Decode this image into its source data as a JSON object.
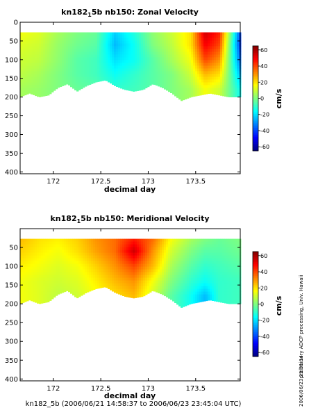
{
  "footer": {
    "caption": "kn182_5b (2006/06/21 14:58:37 to 2006/06/23 23:45:04 UTC)",
    "side_note_1": "preliminary ADCP processing,  Univ. Hawaii",
    "side_note_2": "2006/06/23 23:51:14"
  },
  "colors": {
    "colormap": [
      "#00007f",
      "#0000ff",
      "#007fff",
      "#00ffff",
      "#7fff7f",
      "#ffff00",
      "#ff7f00",
      "#ff0000",
      "#7f0000"
    ],
    "contour": "#000000",
    "no_data": "#ffffff"
  },
  "chart_data": [
    {
      "type": "heatmap",
      "title_main": "kn182",
      "title_sub": "1",
      "title_rest": "5b nb150: Zonal Velocity",
      "xlabel": "decimal day",
      "ylabel": "",
      "xlim": [
        171.65,
        173.97
      ],
      "ylim": [
        405,
        0
      ],
      "x_ticks": [
        "172",
        "172.5",
        "173",
        "173.5"
      ],
      "y_ticks": [
        "0",
        "50",
        "100",
        "150",
        "200",
        "250",
        "300",
        "350",
        "400"
      ],
      "colorbar": {
        "label": "cm/s",
        "range": [
          -65,
          65
        ],
        "ticks": [
          "60",
          "40",
          "20",
          "0",
          "-20",
          "-40",
          "-60"
        ]
      },
      "data_top_depth": 27,
      "data_bottom_profile": {
        "x": [
          171.65,
          171.75,
          171.85,
          171.95,
          172.05,
          172.15,
          172.25,
          172.35,
          172.45,
          172.55,
          172.65,
          172.75,
          172.85,
          172.95,
          173.05,
          173.15,
          173.25,
          173.35,
          173.45,
          173.55,
          173.65,
          173.75,
          173.85,
          173.97
        ],
        "depth": [
          200,
          190,
          200,
          195,
          175,
          165,
          185,
          170,
          160,
          155,
          170,
          180,
          185,
          180,
          165,
          175,
          190,
          210,
          200,
          195,
          190,
          195,
          200,
          200
        ]
      },
      "velocity_grid": {
        "x": [
          171.65,
          171.85,
          172.05,
          172.25,
          172.45,
          172.65,
          172.85,
          173.05,
          173.25,
          173.45,
          173.6,
          173.75,
          173.97
        ],
        "depth": [
          27,
          60,
          100,
          140,
          180,
          210
        ],
        "values": [
          [
            15,
            12,
            5,
            0,
            -3,
            -22,
            -12,
            2,
            10,
            20,
            55,
            45,
            -40
          ],
          [
            12,
            10,
            3,
            -2,
            -5,
            -25,
            -15,
            0,
            8,
            20,
            50,
            40,
            -42
          ],
          [
            10,
            8,
            2,
            -5,
            -8,
            -20,
            -15,
            -5,
            5,
            15,
            40,
            30,
            -35
          ],
          [
            8,
            5,
            0,
            -5,
            -8,
            -15,
            -10,
            -5,
            0,
            10,
            25,
            20,
            -25
          ],
          [
            5,
            3,
            0,
            -3,
            -5,
            -10,
            -8,
            -5,
            0,
            5,
            15,
            10,
            -15
          ],
          [
            5,
            3,
            0,
            -3,
            -5,
            -10,
            -8,
            -5,
            0,
            5,
            15,
            10,
            -15
          ]
        ]
      }
    },
    {
      "type": "heatmap",
      "title_main": "kn182",
      "title_sub": "1",
      "title_rest": "5b nb150: Meridional Velocity",
      "xlabel": "decimal day",
      "ylabel": "",
      "xlim": [
        171.65,
        173.97
      ],
      "ylim": [
        405,
        0
      ],
      "x_ticks": [
        "172",
        "172.5",
        "173",
        "173.5"
      ],
      "y_ticks": [
        "50",
        "100",
        "150",
        "200",
        "250",
        "300",
        "350",
        "400"
      ],
      "colorbar": {
        "label": "cm/s",
        "range": [
          -65,
          65
        ],
        "ticks": [
          "60",
          "40",
          "20",
          "0",
          "-20",
          "-40",
          "-60"
        ]
      },
      "data_top_depth": 27,
      "data_bottom_profile": {
        "x": [
          171.65,
          171.75,
          171.85,
          171.95,
          172.05,
          172.15,
          172.25,
          172.35,
          172.45,
          172.55,
          172.65,
          172.75,
          172.85,
          172.95,
          173.05,
          173.15,
          173.25,
          173.35,
          173.45,
          173.55,
          173.65,
          173.75,
          173.85,
          173.97
        ],
        "depth": [
          200,
          190,
          200,
          195,
          175,
          165,
          185,
          170,
          160,
          155,
          170,
          180,
          185,
          180,
          165,
          175,
          190,
          210,
          200,
          195,
          190,
          195,
          200,
          200
        ]
      },
      "velocity_grid": {
        "x": [
          171.65,
          171.85,
          172.05,
          172.25,
          172.45,
          172.65,
          172.85,
          173.05,
          173.25,
          173.45,
          173.6,
          173.75,
          173.97
        ],
        "depth": [
          27,
          60,
          100,
          140,
          180,
          210
        ],
        "values": [
          [
            25,
            20,
            18,
            22,
            30,
            35,
            45,
            35,
            15,
            5,
            0,
            -3,
            0
          ],
          [
            22,
            18,
            15,
            20,
            28,
            35,
            55,
            30,
            10,
            0,
            -5,
            -5,
            -2
          ],
          [
            18,
            15,
            12,
            15,
            22,
            30,
            40,
            25,
            5,
            -5,
            -10,
            -8,
            -5
          ],
          [
            15,
            12,
            10,
            12,
            18,
            25,
            30,
            15,
            0,
            -10,
            -15,
            -10,
            -8
          ],
          [
            15,
            12,
            8,
            10,
            15,
            20,
            25,
            10,
            -5,
            -15,
            -25,
            -10,
            -8
          ],
          [
            15,
            12,
            8,
            10,
            15,
            20,
            25,
            10,
            -5,
            -15,
            -25,
            -10,
            -8
          ]
        ]
      }
    }
  ]
}
